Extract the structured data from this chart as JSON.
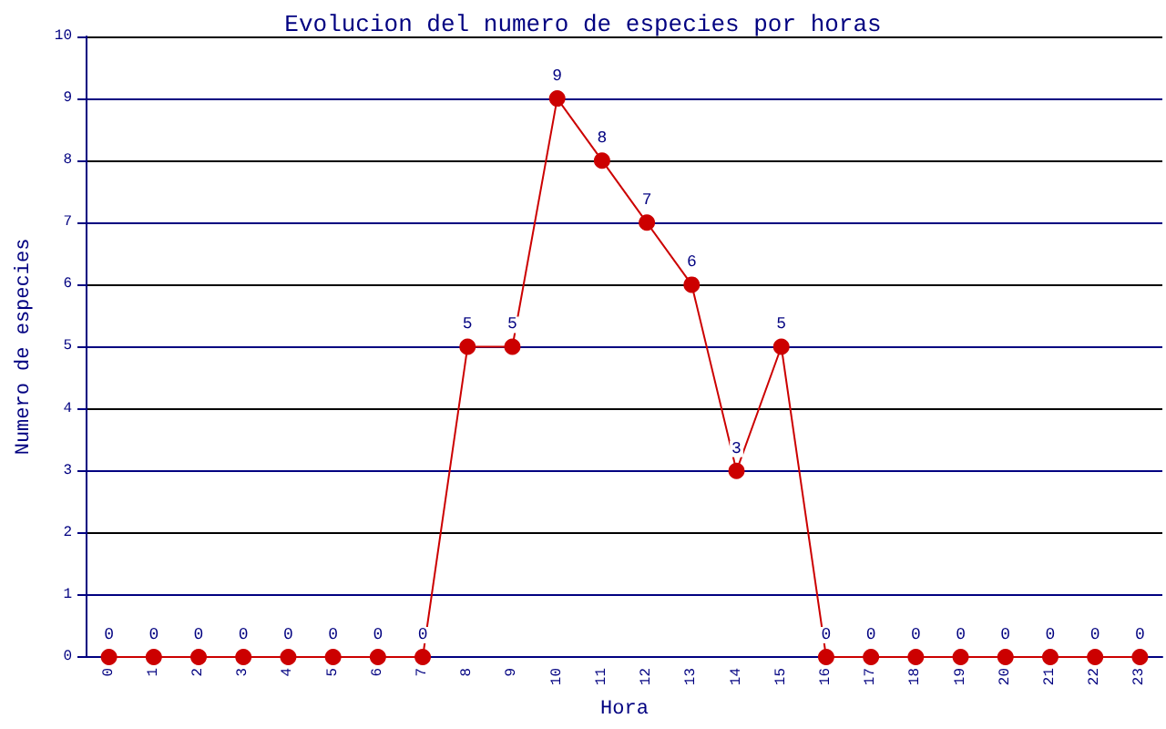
{
  "chart_data": {
    "type": "line",
    "title": "Evolucion del numero de especies por horas",
    "xlabel": "Hora",
    "ylabel": "Numero de especies",
    "categories": [
      "0",
      "1",
      "2",
      "3",
      "4",
      "5",
      "6",
      "7",
      "8",
      "9",
      "10",
      "11",
      "12",
      "13",
      "14",
      "15",
      "16",
      "17",
      "18",
      "19",
      "20",
      "21",
      "22",
      "23"
    ],
    "series": [
      {
        "color": "#cc0000",
        "values": [
          0,
          0,
          0,
          0,
          0,
          0,
          0,
          0,
          5,
          5,
          9,
          8,
          7,
          6,
          3,
          5,
          0,
          0,
          0,
          0,
          0,
          0,
          0,
          0
        ]
      }
    ],
    "ylim": [
      0,
      10
    ],
    "yticks": [
      0,
      1,
      2,
      3,
      4,
      5,
      6,
      7,
      8,
      9,
      10
    ],
    "grid": "y",
    "marker": "circle",
    "line_style": "solid",
    "data_labels": true
  }
}
